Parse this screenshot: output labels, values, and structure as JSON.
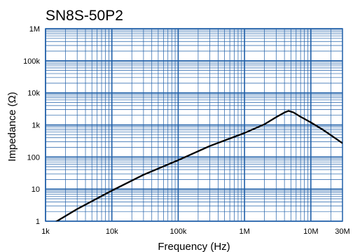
{
  "chart_data": {
    "type": "line",
    "title": "SN8S-50P2",
    "xlabel": "Frequency (Hz)",
    "ylabel": "Impedance (Ω)",
    "x_scale": "log",
    "y_scale": "log",
    "xlim": [
      1000,
      30000000
    ],
    "ylim": [
      1,
      1000000
    ],
    "x_ticks": [
      {
        "value": 1000,
        "label": "1k"
      },
      {
        "value": 10000,
        "label": "10k"
      },
      {
        "value": 100000,
        "label": "100k"
      },
      {
        "value": 1000000,
        "label": "1M"
      },
      {
        "value": 10000000,
        "label": "10M"
      },
      {
        "value": 30000000,
        "label": "30M"
      }
    ],
    "y_ticks": [
      {
        "value": 1,
        "label": "1"
      },
      {
        "value": 10,
        "label": "10"
      },
      {
        "value": 100,
        "label": "100"
      },
      {
        "value": 1000,
        "label": "1k"
      },
      {
        "value": 10000,
        "label": "10k"
      },
      {
        "value": 100000,
        "label": "100k"
      },
      {
        "value": 1000000,
        "label": "1M"
      }
    ],
    "grid": true,
    "colors": {
      "grid": "#1f5fa8",
      "line": "#000000"
    },
    "series": [
      {
        "x": [
          1300,
          3000,
          10000,
          30000,
          100000,
          300000,
          1000000,
          2000000,
          3000000,
          4000000,
          4600000,
          5500000,
          7000000,
          10000000,
          15000000,
          20000000,
          30000000
        ],
        "y": [
          0.85,
          2.4,
          9,
          28,
          80,
          220,
          560,
          1050,
          1750,
          2450,
          2750,
          2450,
          1800,
          1200,
          720,
          480,
          270
        ]
      }
    ]
  }
}
